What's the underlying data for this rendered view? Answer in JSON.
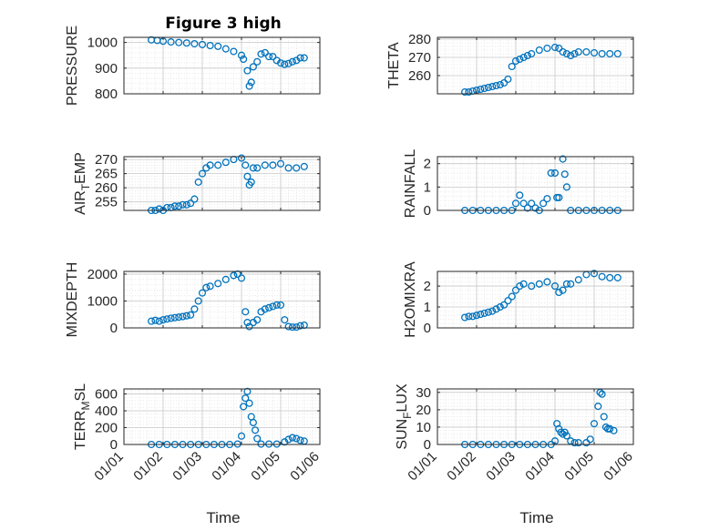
{
  "figure": {
    "title": "Figure 3 high",
    "xlabel": "Time"
  },
  "colors": {
    "marker": "#0072BD",
    "axis": "#262626",
    "grid": "#c8c8c8",
    "background": "#ffffff"
  },
  "chart_data": [
    {
      "type": "scatter",
      "title": "Figure 3 high",
      "ylabel": "PRESSURE",
      "xlim": [
        0,
        5
      ],
      "ylim": [
        800,
        1020
      ],
      "yticks": [
        800,
        900,
        1000
      ],
      "ytick_labels": [
        "800",
        "900",
        "1000"
      ],
      "xticks": [
        0,
        1,
        2,
        3,
        4,
        5
      ],
      "xtick_labels": [],
      "grid": true,
      "minor_grid": true,
      "x": [
        0.7,
        0.85,
        1.0,
        1.2,
        1.4,
        1.6,
        1.8,
        2.0,
        2.2,
        2.4,
        2.6,
        2.8,
        3.0,
        3.05,
        3.15,
        3.2,
        3.25,
        3.3,
        3.4,
        3.5,
        3.6,
        3.7,
        3.8,
        3.9,
        4.0,
        4.1,
        4.2,
        4.3,
        4.4,
        4.5,
        4.6
      ],
      "y": [
        1010,
        1008,
        1005,
        1002,
        1000,
        998,
        995,
        992,
        988,
        985,
        975,
        965,
        950,
        935,
        890,
        830,
        845,
        905,
        925,
        955,
        960,
        945,
        945,
        930,
        920,
        915,
        918,
        925,
        930,
        940,
        940
      ]
    },
    {
      "type": "scatter",
      "ylabel": "THETA",
      "xlim": [
        0,
        5
      ],
      "ylim": [
        250,
        281
      ],
      "yticks": [
        260,
        270,
        280
      ],
      "ytick_labels": [
        "260",
        "270",
        "280"
      ],
      "xticks": [
        0,
        1,
        2,
        3,
        4,
        5
      ],
      "xtick_labels": [],
      "grid": true,
      "minor_grid": true,
      "x": [
        0.7,
        0.8,
        0.9,
        1.0,
        1.1,
        1.2,
        1.3,
        1.4,
        1.5,
        1.6,
        1.7,
        1.8,
        1.9,
        2.0,
        2.1,
        2.2,
        2.3,
        2.4,
        2.6,
        2.8,
        3.0,
        3.1,
        3.2,
        3.3,
        3.4,
        3.5,
        3.6,
        3.8,
        4.0,
        4.2,
        4.4,
        4.6
      ],
      "y": [
        251,
        251,
        251.5,
        252,
        252.5,
        253,
        253.5,
        254,
        254.5,
        255,
        256,
        258,
        265,
        268,
        269,
        270,
        271,
        272,
        274,
        275,
        275.5,
        275,
        273,
        272,
        271,
        272,
        273,
        273,
        272.5,
        272,
        272,
        272
      ]
    },
    {
      "type": "scatter",
      "ylabel": "AIR_TEMP",
      "xlim": [
        0,
        5
      ],
      "ylim": [
        252,
        271
      ],
      "yticks": [
        255,
        260,
        265,
        270
      ],
      "ytick_labels": [
        "255",
        "260",
        "265",
        "270"
      ],
      "xticks": [
        0,
        1,
        2,
        3,
        4,
        5
      ],
      "xtick_labels": [],
      "grid": true,
      "minor_grid": true,
      "x": [
        0.7,
        0.8,
        0.9,
        1.0,
        1.1,
        1.2,
        1.3,
        1.4,
        1.5,
        1.6,
        1.7,
        1.8,
        1.9,
        2.0,
        2.1,
        2.2,
        2.4,
        2.6,
        2.8,
        3.0,
        3.1,
        3.15,
        3.2,
        3.25,
        3.3,
        3.4,
        3.6,
        3.8,
        4.0,
        4.2,
        4.4,
        4.6
      ],
      "y": [
        252,
        252,
        252.5,
        252,
        253,
        253,
        253.5,
        253.5,
        254,
        254,
        254.5,
        256,
        262,
        265,
        267,
        268,
        268,
        269,
        270,
        270.5,
        268,
        264,
        261,
        262,
        267,
        267,
        268,
        268,
        268.5,
        267,
        267,
        267.5
      ]
    },
    {
      "type": "scatter",
      "ylabel": "RAINFALL",
      "xlim": [
        0,
        5
      ],
      "ylim": [
        0,
        2.3
      ],
      "yticks": [
        0,
        1,
        2
      ],
      "ytick_labels": [
        "0",
        "1",
        "2"
      ],
      "xticks": [
        0,
        1,
        2,
        3,
        4,
        5
      ],
      "xtick_labels": [],
      "grid": true,
      "minor_grid": true,
      "x": [
        0.7,
        0.9,
        1.1,
        1.3,
        1.5,
        1.7,
        1.9,
        2.0,
        2.1,
        2.2,
        2.3,
        2.4,
        2.5,
        2.6,
        2.7,
        2.8,
        2.9,
        3.0,
        3.05,
        3.1,
        3.2,
        3.25,
        3.3,
        3.4,
        3.6,
        3.8,
        4.0,
        4.2,
        4.4,
        4.6
      ],
      "y": [
        0,
        0,
        0,
        0,
        0,
        0,
        0,
        0.3,
        0.65,
        0.3,
        0.1,
        0.3,
        0.1,
        0,
        0.3,
        0.5,
        1.6,
        1.6,
        0.55,
        0.55,
        2.2,
        1.55,
        1.0,
        0,
        0,
        0,
        0,
        0,
        0,
        0
      ]
    },
    {
      "type": "scatter",
      "ylabel": "MIXDEPTH",
      "xlim": [
        0,
        5
      ],
      "ylim": [
        0,
        2100
      ],
      "yticks": [
        0,
        1000,
        2000
      ],
      "ytick_labels": [
        "0",
        "1000",
        "2000"
      ],
      "xticks": [
        0,
        1,
        2,
        3,
        4,
        5
      ],
      "xtick_labels": [],
      "grid": true,
      "minor_grid": true,
      "x": [
        0.7,
        0.8,
        0.9,
        1.0,
        1.1,
        1.2,
        1.3,
        1.4,
        1.5,
        1.6,
        1.7,
        1.8,
        1.9,
        2.0,
        2.1,
        2.2,
        2.4,
        2.6,
        2.8,
        2.9,
        3.0,
        3.1,
        3.15,
        3.2,
        3.3,
        3.4,
        3.5,
        3.6,
        3.7,
        3.8,
        3.9,
        4.0,
        4.1,
        4.2,
        4.3,
        4.4,
        4.5,
        4.6
      ],
      "y": [
        250,
        280,
        250,
        300,
        330,
        360,
        380,
        400,
        420,
        450,
        480,
        700,
        1000,
        1300,
        1500,
        1550,
        1650,
        1800,
        1950,
        2000,
        1850,
        600,
        200,
        50,
        200,
        300,
        600,
        700,
        750,
        800,
        850,
        850,
        300,
        50,
        30,
        30,
        80,
        100
      ]
    },
    {
      "type": "scatter",
      "ylabel": "H2OMIXRA",
      "xlim": [
        0,
        5
      ],
      "ylim": [
        0,
        2.7
      ],
      "yticks": [
        0,
        1,
        2
      ],
      "ytick_labels": [
        "0",
        "1",
        "2"
      ],
      "xticks": [
        0,
        1,
        2,
        3,
        4,
        5
      ],
      "xtick_labels": [],
      "grid": true,
      "minor_grid": true,
      "x": [
        0.7,
        0.8,
        0.9,
        1.0,
        1.1,
        1.2,
        1.3,
        1.4,
        1.5,
        1.6,
        1.7,
        1.8,
        1.9,
        2.0,
        2.1,
        2.2,
        2.4,
        2.6,
        2.8,
        3.0,
        3.1,
        3.2,
        3.3,
        3.4,
        3.6,
        3.8,
        4.0,
        4.2,
        4.4,
        4.6
      ],
      "y": [
        0.5,
        0.55,
        0.55,
        0.6,
        0.65,
        0.7,
        0.75,
        0.8,
        0.9,
        1.0,
        1.1,
        1.3,
        1.5,
        1.8,
        2.0,
        2.1,
        2.0,
        2.1,
        2.2,
        2.0,
        1.7,
        1.8,
        2.1,
        2.1,
        2.3,
        2.55,
        2.6,
        2.45,
        2.4,
        2.4
      ]
    },
    {
      "type": "scatter",
      "ylabel": "TERR_MSL",
      "xlim": [
        0,
        5
      ],
      "ylim": [
        0,
        660
      ],
      "yticks": [
        0,
        200,
        400,
        600
      ],
      "ytick_labels": [
        "0",
        "200",
        "400",
        "600"
      ],
      "xticks": [
        0,
        1,
        2,
        3,
        4,
        5
      ],
      "xtick_labels": [
        "01/01",
        "01/02",
        "01/03",
        "01/04",
        "01/05",
        "01/06"
      ],
      "grid": true,
      "minor_grid": true,
      "x": [
        0.7,
        0.9,
        1.1,
        1.3,
        1.5,
        1.7,
        1.9,
        2.1,
        2.3,
        2.5,
        2.7,
        2.9,
        3.0,
        3.05,
        3.1,
        3.15,
        3.2,
        3.25,
        3.3,
        3.35,
        3.4,
        3.5,
        3.7,
        3.9,
        4.1,
        4.2,
        4.3,
        4.4,
        4.5,
        4.6
      ],
      "y": [
        0,
        0,
        0,
        0,
        0,
        0,
        0,
        0,
        0,
        0,
        0,
        5,
        100,
        450,
        550,
        630,
        490,
        330,
        260,
        170,
        70,
        5,
        5,
        5,
        30,
        60,
        80,
        70,
        50,
        40
      ]
    },
    {
      "type": "scatter",
      "ylabel": "SUN_FLUX",
      "xlim": [
        0,
        5
      ],
      "ylim": [
        0,
        32
      ],
      "yticks": [
        0,
        10,
        20,
        30
      ],
      "ytick_labels": [
        "0",
        "10",
        "20",
        "30"
      ],
      "xticks": [
        0,
        1,
        2,
        3,
        4,
        5
      ],
      "xtick_labels": [
        "01/01",
        "01/02",
        "01/03",
        "01/04",
        "01/05",
        "01/06"
      ],
      "grid": true,
      "minor_grid": true,
      "x": [
        0.7,
        0.9,
        1.1,
        1.3,
        1.5,
        1.7,
        1.9,
        2.1,
        2.3,
        2.5,
        2.7,
        2.9,
        3.0,
        3.05,
        3.1,
        3.15,
        3.2,
        3.25,
        3.3,
        3.4,
        3.5,
        3.6,
        3.8,
        3.9,
        4.0,
        4.1,
        4.15,
        4.2,
        4.25,
        4.3,
        4.35,
        4.4,
        4.5
      ],
      "y": [
        0,
        0,
        0,
        0,
        0,
        0,
        0,
        0,
        0,
        0,
        0,
        0,
        2,
        12,
        9,
        7,
        6,
        7,
        5,
        2,
        1,
        1,
        1,
        3,
        12,
        22,
        30,
        29,
        16,
        10,
        9,
        9,
        8
      ]
    }
  ]
}
